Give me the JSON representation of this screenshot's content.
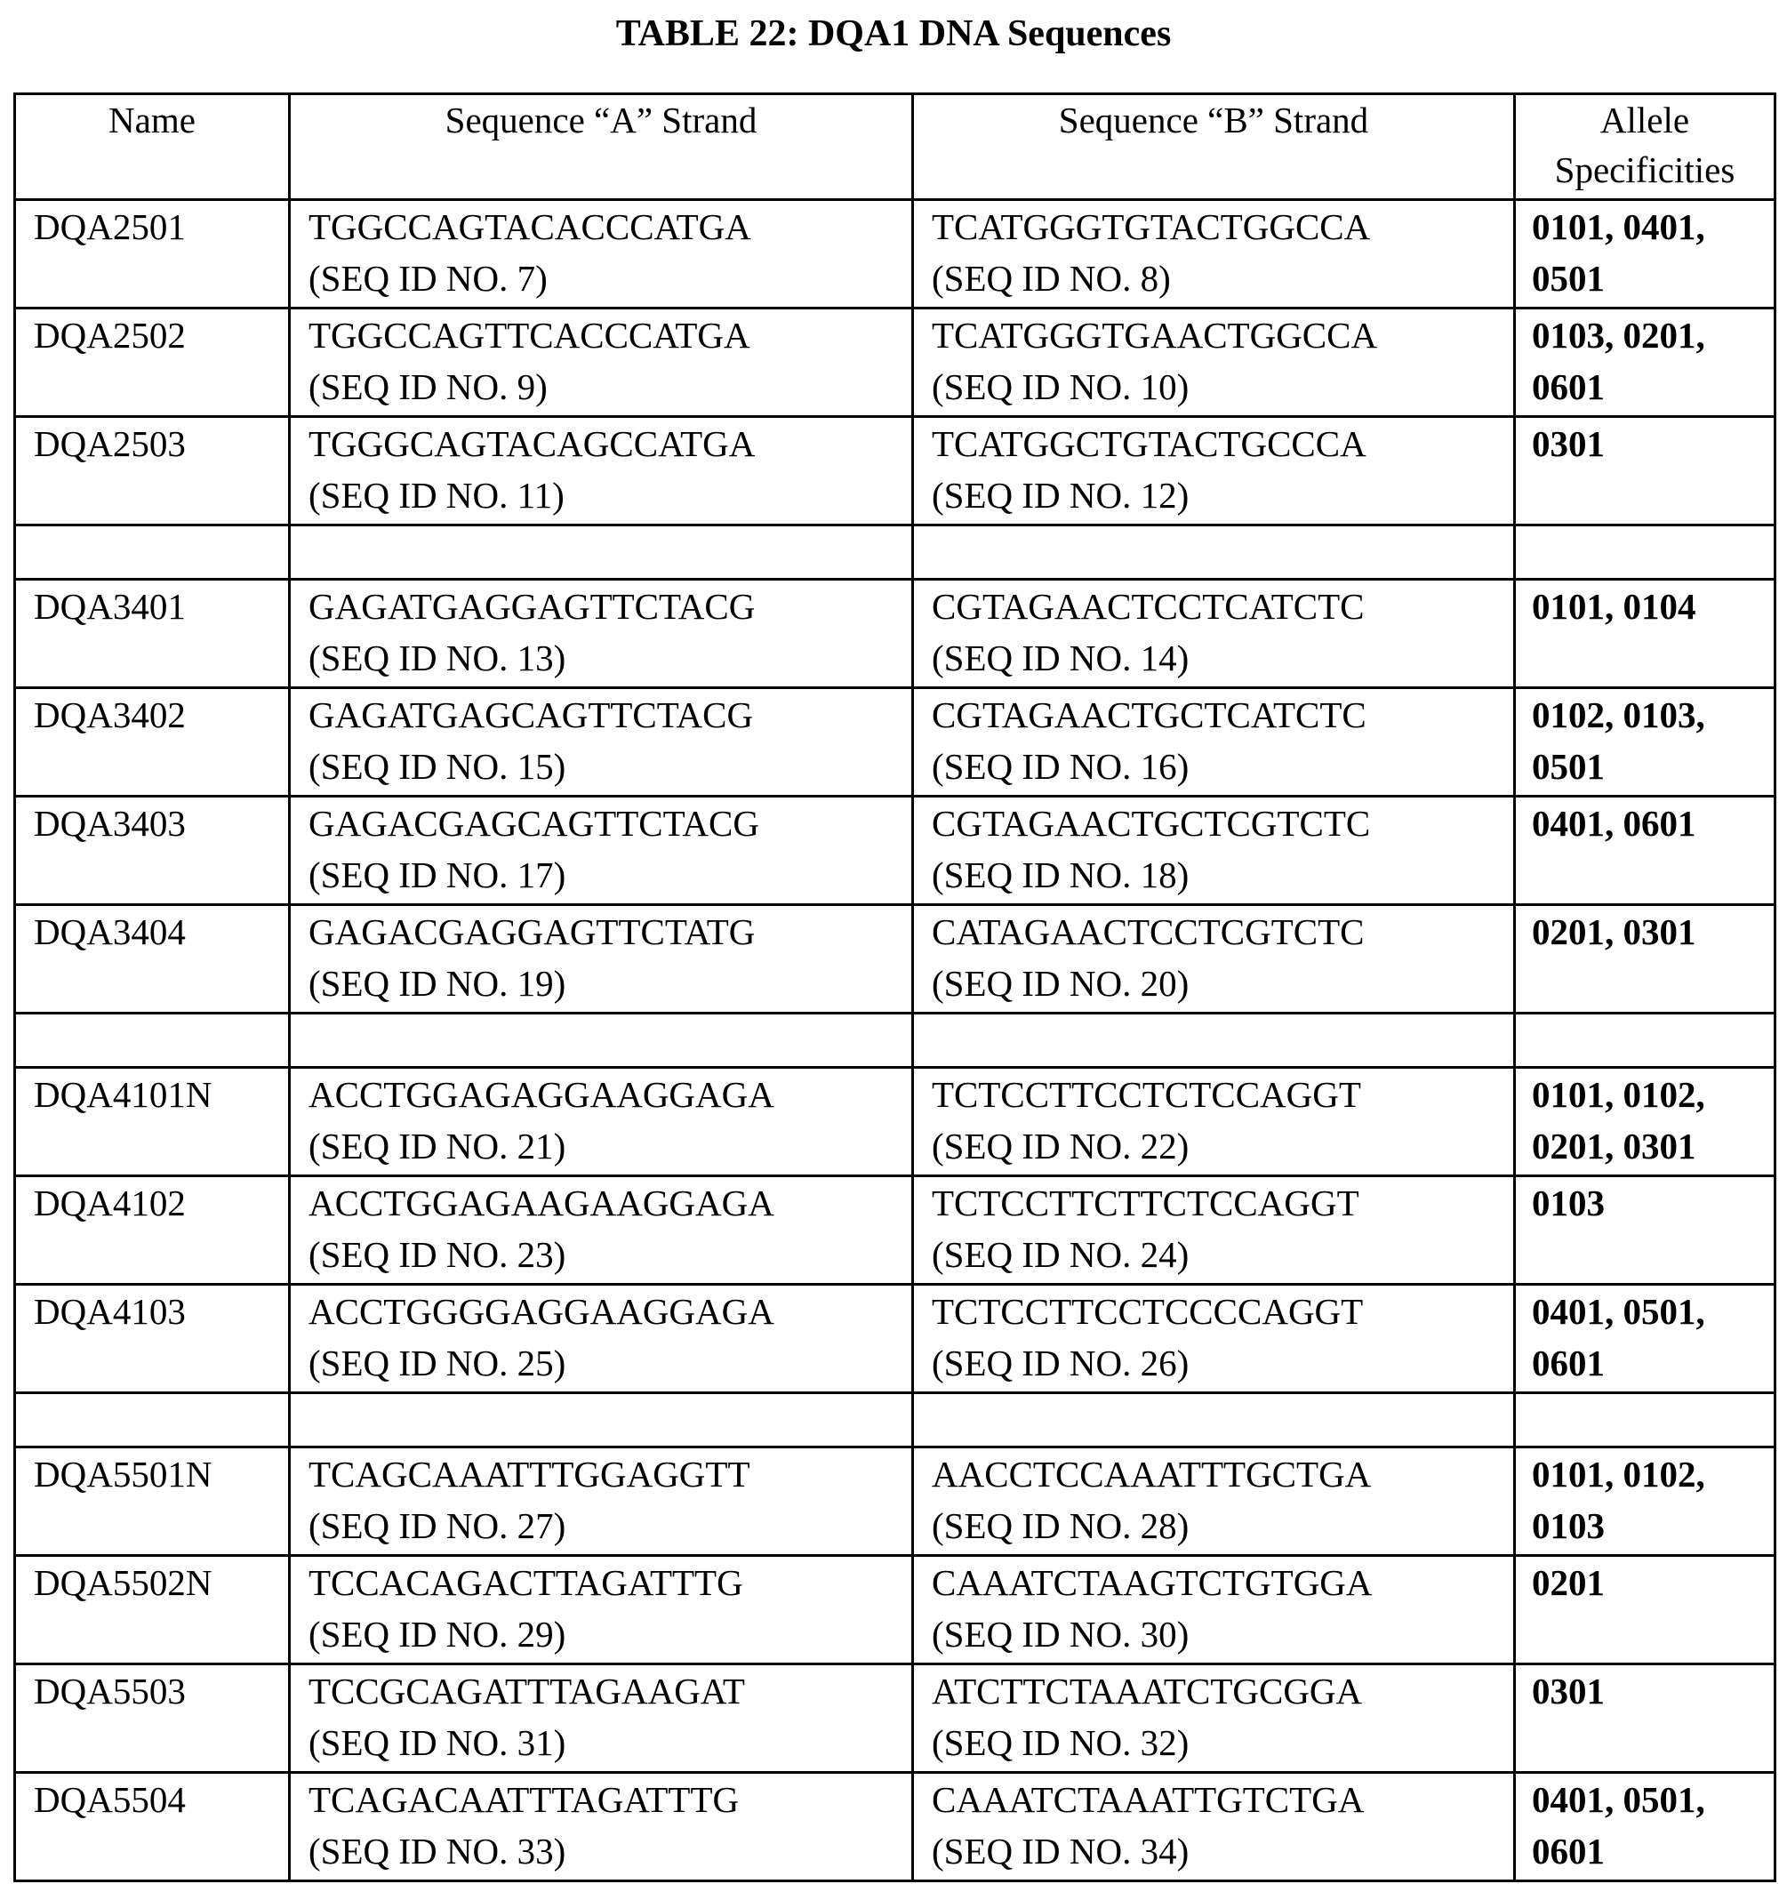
{
  "title": "TABLE 22:  DQA1 DNA Sequences",
  "columns": [
    "Name",
    "Sequence “A” Strand",
    "Sequence “B” Strand",
    "Allele Specificities"
  ],
  "rows": [
    {
      "name": "DQA2501",
      "a_seq": "TGGCCAGTACACCCATGA",
      "a_id": "(SEQ ID NO. 7)",
      "b_seq": "TCATGGGTGTACTGGCCA",
      "b_id": "(SEQ ID NO. 8)",
      "allele1": "0101, 0401,",
      "allele2": "0501"
    },
    {
      "name": "DQA2502",
      "a_seq": "TGGCCAGTTCACCCATGA",
      "a_id": "(SEQ ID NO. 9)",
      "b_seq": "TCATGGGTGAACTGGCCA",
      "b_id": "(SEQ ID NO. 10)",
      "allele1": "0103, 0201,",
      "allele2": "0601"
    },
    {
      "name": "DQA2503",
      "a_seq": "TGGGCAGTACAGCCATGA",
      "a_id": "(SEQ ID NO. 11)",
      "b_seq": "TCATGGCTGTACTGCCCA",
      "b_id": "(SEQ ID NO. 12)",
      "allele1": "0301",
      "allele2": ""
    },
    {
      "spacer": true
    },
    {
      "name": "DQA3401",
      "a_seq": "GAGATGAGGAGTTCTACG",
      "a_id": "(SEQ ID NO. 13)",
      "b_seq": "CGTAGAACTCCTCATCTC",
      "b_id": "(SEQ ID NO. 14)",
      "allele1": "0101, 0104",
      "allele2": ""
    },
    {
      "name": "DQA3402",
      "a_seq": "GAGATGAGCAGTTCTACG",
      "a_id": "(SEQ ID NO. 15)",
      "b_seq": "CGTAGAACTGCTCATCTC",
      "b_id": "(SEQ ID NO. 16)",
      "allele1": "0102, 0103,",
      "allele2": "0501"
    },
    {
      "name": "DQA3403",
      "a_seq": "GAGACGAGCAGTTCTACG",
      "a_id": "(SEQ ID NO. 17)",
      "b_seq": "CGTAGAACTGCTCGTCTC",
      "b_id": "(SEQ ID NO. 18)",
      "allele1": "0401, 0601",
      "allele2": ""
    },
    {
      "name": "DQA3404",
      "a_seq": "GAGACGAGGAGTTCTATG",
      "a_id": "(SEQ ID NO. 19)",
      "b_seq": "CATAGAACTCCTCGTCTC",
      "b_id": "(SEQ ID NO. 20)",
      "allele1": "0201, 0301",
      "allele2": ""
    },
    {
      "spacer": true
    },
    {
      "name": "DQA4101N",
      "a_seq": "ACCTGGAGAGGAAGGAGA",
      "a_id": "(SEQ ID NO. 21)",
      "b_seq": "TCTCCTTCCTCTCCAGGT",
      "b_id": "(SEQ ID NO. 22)",
      "allele1": "0101, 0102,",
      "allele2": "0201, 0301"
    },
    {
      "name": "DQA4102",
      "a_seq": "ACCTGGAGAAGAAGGAGA",
      "a_id": "(SEQ ID NO. 23)",
      "b_seq": "TCTCCTTCTTCTCCAGGT",
      "b_id": "(SEQ ID NO. 24)",
      "allele1": "0103",
      "allele2": ""
    },
    {
      "name": "DQA4103",
      "a_seq": "ACCTGGGGAGGAAGGAGA",
      "a_id": "(SEQ ID NO. 25)",
      "b_seq": "TCTCCTTCCTCCCCAGGT",
      "b_id": "(SEQ ID NO. 26)",
      "allele1": "0401, 0501,",
      "allele2": "0601"
    },
    {
      "spacer": true
    },
    {
      "name": "DQA5501N",
      "a_seq": "TCAGCAAATTTGGAGGTT",
      "a_id": "(SEQ ID NO. 27)",
      "b_seq": "AACCTCCAAATTTGCTGA",
      "b_id": "(SEQ ID NO. 28)",
      "allele1": "0101, 0102,",
      "allele2": "0103"
    },
    {
      "name": "DQA5502N",
      "a_seq": "TCCACAGACTTAGATTTG",
      "a_id": "(SEQ ID NO. 29)",
      "b_seq": "CAAATCTAAGTCTGTGGA",
      "b_id": "(SEQ ID NO. 30)",
      "allele1": "0201",
      "allele2": ""
    },
    {
      "name": "DQA5503",
      "a_seq": "TCCGCAGATTTAGAAGAT",
      "a_id": "(SEQ ID NO. 31)",
      "b_seq": "ATCTTCTAAATCTGCGGA",
      "b_id": "(SEQ ID NO. 32)",
      "allele1": "0301",
      "allele2": ""
    },
    {
      "name": "DQA5504",
      "a_seq": "TCAGACAATTTAGATTTG",
      "a_id": "(SEQ ID NO. 33)",
      "b_seq": "CAAATCTAAATTGTCTGA",
      "b_id": "(SEQ ID NO. 34)",
      "allele1": "0401, 0501,",
      "allele2": "0601"
    }
  ]
}
